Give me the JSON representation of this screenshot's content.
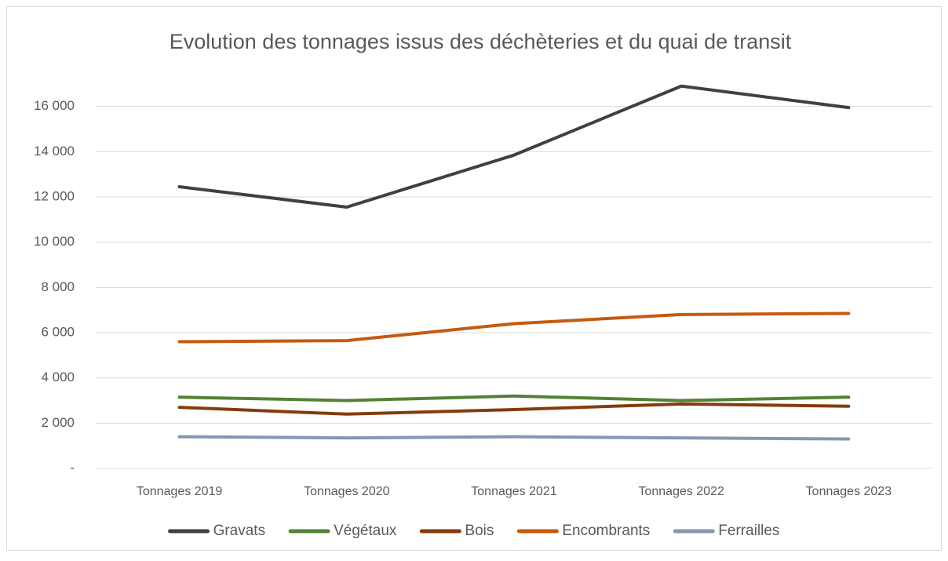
{
  "chart_data": {
    "type": "line",
    "title": "Evolution des tonnages issus des déchèteries et du quai de transit",
    "categories": [
      "Tonnages 2019",
      "Tonnages 2020",
      "Tonnages 2021",
      "Tonnages 2022",
      "Tonnages 2023"
    ],
    "series": [
      {
        "name": "Gravats",
        "color": "#404040",
        "values": [
          12450,
          11550,
          13850,
          16900,
          15950
        ]
      },
      {
        "name": "Végétaux",
        "color": "#548235",
        "values": [
          3150,
          3000,
          3200,
          3000,
          3150
        ]
      },
      {
        "name": "Bois",
        "color": "#843c0c",
        "values": [
          2700,
          2400,
          2600,
          2850,
          2750
        ]
      },
      {
        "name": "Encombrants",
        "color": "#c55a11",
        "values": [
          5600,
          5650,
          6400,
          6800,
          6850
        ]
      },
      {
        "name": "Ferrailles",
        "color": "#8497b0",
        "values": [
          1400,
          1350,
          1400,
          1350,
          1300
        ]
      }
    ],
    "ylim": [
      0,
      18000
    ],
    "yticks": [
      {
        "value": 0,
        "label": "-"
      },
      {
        "value": 2000,
        "label": "2 000"
      },
      {
        "value": 4000,
        "label": "4 000"
      },
      {
        "value": 6000,
        "label": "6 000"
      },
      {
        "value": 8000,
        "label": "8 000"
      },
      {
        "value": 10000,
        "label": "10 000"
      },
      {
        "value": 12000,
        "label": "12 000"
      },
      {
        "value": 14000,
        "label": "14 000"
      },
      {
        "value": 16000,
        "label": "16 000"
      }
    ],
    "grid": true,
    "legend": "bottom"
  }
}
